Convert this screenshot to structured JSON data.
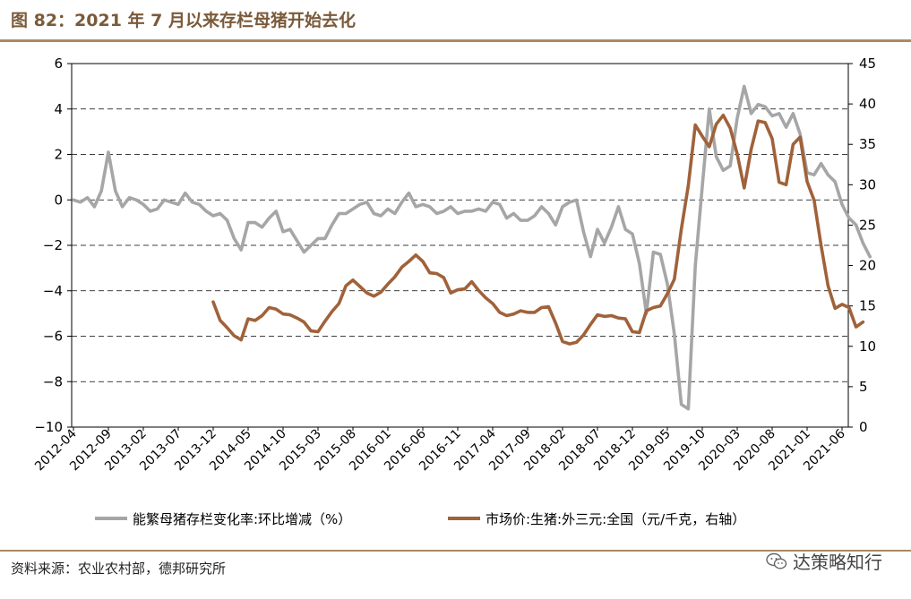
{
  "header": {
    "title": "图 82：2021 年 7 月以来存栏母猪开始去化"
  },
  "footer": {
    "source": "资料来源：农业农村部，德邦研究所",
    "watermark": "达策略知行"
  },
  "chart_data": {
    "type": "line",
    "x_tick_labels": [
      "2012-04",
      "2012-09",
      "2013-02",
      "2013-07",
      "2013-12",
      "2014-05",
      "2014-10",
      "2015-03",
      "2015-08",
      "2016-01",
      "2016-06",
      "2016-11",
      "2017-04",
      "2017-09",
      "2018-02",
      "2018-07",
      "2018-12",
      "2019-05",
      "2019-10",
      "2020-03",
      "2020-08",
      "2021-01",
      "2021-06"
    ],
    "y_left": {
      "min": -10,
      "max": 6,
      "ticks": [
        -10,
        -8,
        -6,
        -4,
        -2,
        0,
        2,
        4,
        6
      ]
    },
    "y_right": {
      "min": 0,
      "max": 45,
      "ticks": [
        0,
        5,
        10,
        15,
        20,
        25,
        30,
        35,
        40,
        45
      ]
    },
    "grid": "horizontal-dashed",
    "legend_position": "bottom",
    "series": [
      {
        "name": "能繁母猪存栏变化率:环比增减（%）",
        "axis": "left",
        "color": "#a6a6a6",
        "start_month_index": 0,
        "values": [
          0.0,
          -0.1,
          0.1,
          -0.3,
          0.4,
          2.1,
          0.4,
          -0.3,
          0.1,
          0.0,
          -0.2,
          -0.5,
          -0.4,
          0.0,
          -0.1,
          -0.2,
          0.3,
          -0.1,
          -0.2,
          -0.5,
          -0.7,
          -0.6,
          -0.9,
          -1.7,
          -2.2,
          -1.0,
          -1.0,
          -1.2,
          -0.8,
          -0.5,
          -1.4,
          -1.3,
          -1.8,
          -2.3,
          -2.0,
          -1.7,
          -1.7,
          -1.1,
          -0.6,
          -0.6,
          -0.4,
          -0.2,
          -0.1,
          -0.6,
          -0.7,
          -0.4,
          -0.6,
          -0.1,
          0.3,
          -0.3,
          -0.2,
          -0.3,
          -0.6,
          -0.5,
          -0.3,
          -0.6,
          -0.5,
          -0.5,
          -0.4,
          -0.5,
          -0.1,
          -0.2,
          -0.8,
          -0.6,
          -0.9,
          -0.9,
          -0.7,
          -0.3,
          -0.6,
          -1.1,
          -0.3,
          -0.1,
          0.0,
          -1.4,
          -2.5,
          -1.3,
          -1.9,
          -1.2,
          -0.3,
          -1.3,
          -1.5,
          -2.8,
          -5.0,
          -2.3,
          -2.4,
          -3.7,
          -5.9,
          -9.0,
          -9.2,
          -2.9,
          0.6,
          4.0,
          1.9,
          1.3,
          1.5,
          3.6,
          5.0,
          3.8,
          4.2,
          4.1,
          3.7,
          3.8,
          3.2,
          3.8,
          2.9,
          1.2,
          1.1,
          1.6,
          1.1,
          0.8,
          -0.2,
          -0.8,
          -1.1,
          -1.9,
          -2.5
        ]
      },
      {
        "name": "市场价:生猪:外三元:全国（元/千克，右轴）",
        "axis": "right",
        "color": "#a0623a",
        "start_month_index": 20,
        "values": [
          15.5,
          13.2,
          12.3,
          11.3,
          10.8,
          13.4,
          13.2,
          13.8,
          14.8,
          14.6,
          14.0,
          13.9,
          13.5,
          13.0,
          11.9,
          11.8,
          13.1,
          14.3,
          15.3,
          17.5,
          18.2,
          17.4,
          16.6,
          16.2,
          16.7,
          17.7,
          18.6,
          19.8,
          20.5,
          21.3,
          20.5,
          19.1,
          19.0,
          18.5,
          16.6,
          17.0,
          17.1,
          18.0,
          16.9,
          16.0,
          15.3,
          14.2,
          13.8,
          14.0,
          14.4,
          14.2,
          14.2,
          14.8,
          14.9,
          12.9,
          10.6,
          10.3,
          10.5,
          11.4,
          12.7,
          13.9,
          13.7,
          13.8,
          13.5,
          13.4,
          11.8,
          11.7,
          14.4,
          14.8,
          15.0,
          16.5,
          18.3,
          24.5,
          29.9,
          37.4,
          36.0,
          34.7,
          37.5,
          38.6,
          37.0,
          33.8,
          29.6,
          34.4,
          37.9,
          37.7,
          35.7,
          30.3,
          30.0,
          35.0,
          35.9,
          30.4,
          28.1,
          22.5,
          17.5,
          14.7,
          15.2,
          14.8,
          12.4,
          13.0
        ]
      }
    ]
  }
}
